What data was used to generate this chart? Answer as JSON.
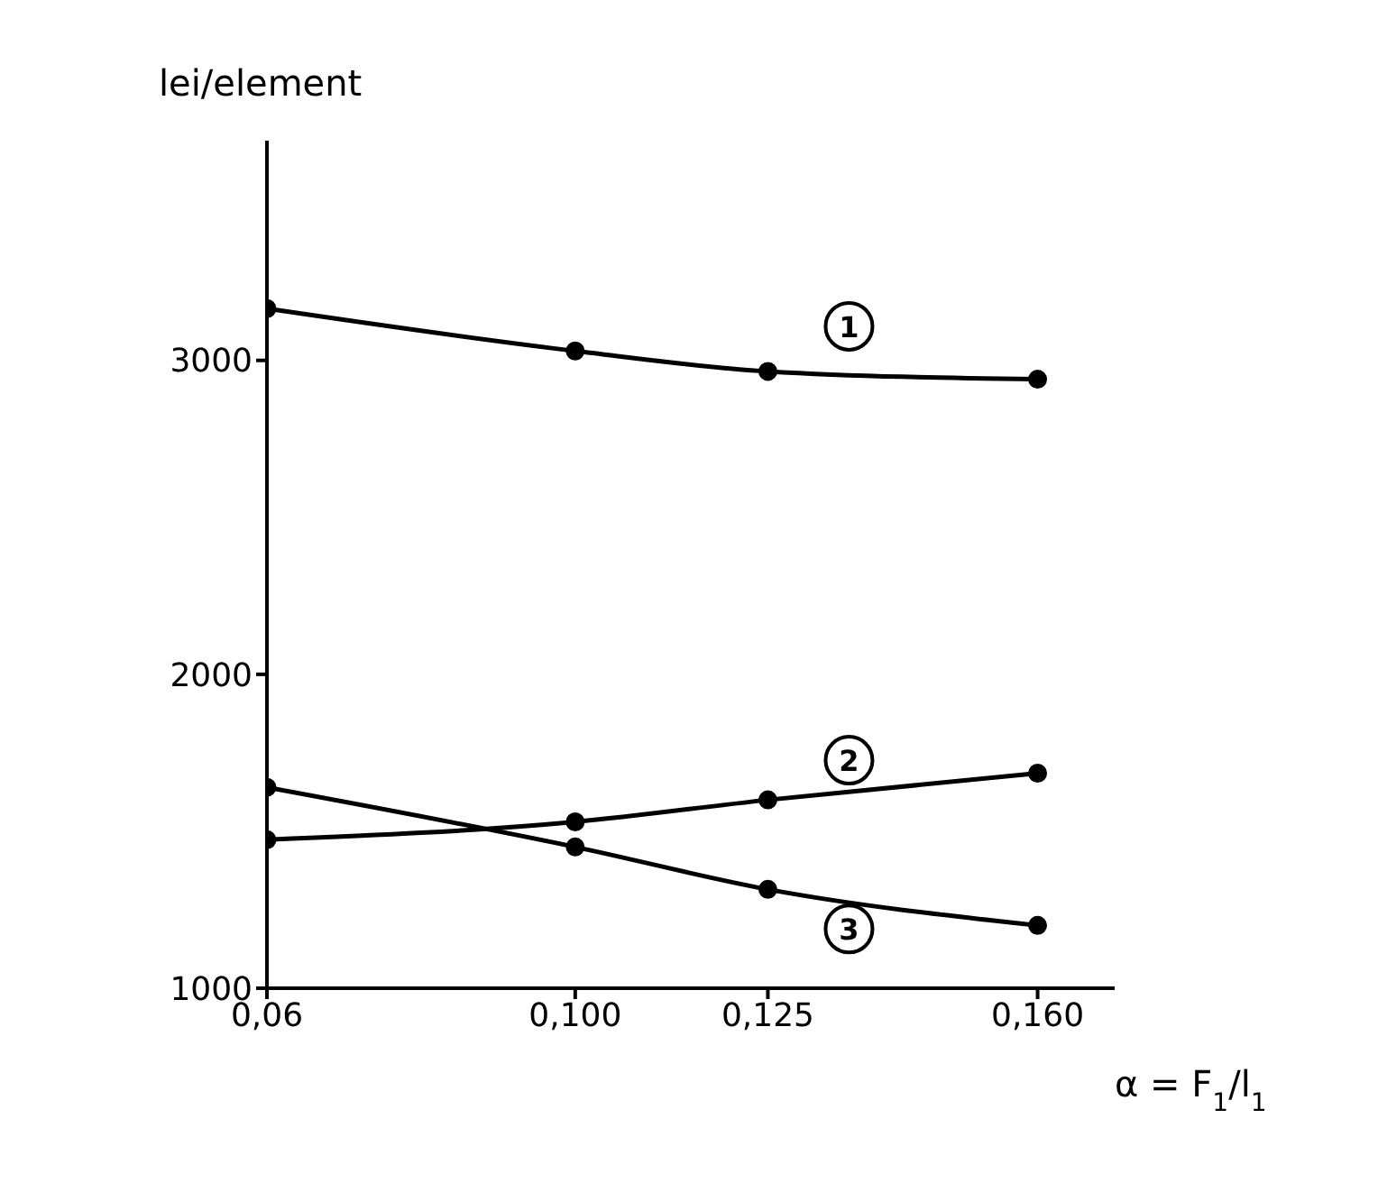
{
  "chart_data": {
    "type": "line",
    "ylabel": "lei/element",
    "xlabel": "α = F$_{1}$/l$_{1}$",
    "x": [
      0.06,
      0.1,
      0.125,
      0.16
    ],
    "series": [
      {
        "name": "1",
        "color": "#000000",
        "values": [
          3165,
          3030,
          2965,
          2940
        ]
      },
      {
        "name": "2",
        "color": "#000000",
        "values": [
          1473,
          1530,
          1600,
          1685
        ]
      },
      {
        "name": "3",
        "color": "#000000",
        "values": [
          1640,
          1450,
          1315,
          1200
        ]
      }
    ],
    "xlim": [
      0.06,
      0.17
    ],
    "xticks": [
      {
        "value": 0.06,
        "label": "0,06"
      },
      {
        "value": 0.1,
        "label": "0,100"
      },
      {
        "value": 0.125,
        "label": "0,125"
      },
      {
        "value": 0.16,
        "label": "0,160"
      }
    ],
    "ylim": [
      1000,
      3700
    ],
    "yticks": [
      1000,
      2000,
      3000
    ],
    "grid": false,
    "marker": "circle",
    "line_style": "solid"
  }
}
